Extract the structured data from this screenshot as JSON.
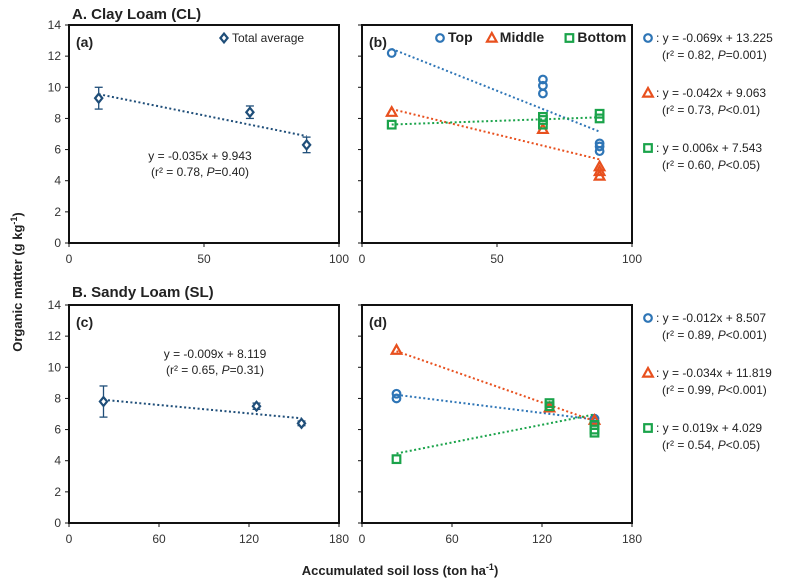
{
  "figure": {
    "ylabel": "Organic matter (g kg",
    "ylabel_sup": "-1",
    "ylabel_close": ")",
    "xlabel": "Accumulated soil loss (ton ha",
    "xlabel_sup": "-1",
    "xlabel_close": ")",
    "section_a": "A. Clay Loam (CL)",
    "section_b": "B. Sandy Loam (SL)"
  },
  "colors": {
    "total": "#1f4e79",
    "top": "#2e75b6",
    "middle": "#e8501e",
    "bottom": "#1aa34a"
  },
  "chart_data": [
    {
      "panel": "(a)",
      "type": "scatter",
      "xlim": [
        0,
        100
      ],
      "xticks": [
        0,
        50,
        100
      ],
      "ylim": [
        0,
        14
      ],
      "yticks": [
        0,
        2,
        4,
        6,
        8,
        10,
        12,
        14
      ],
      "series": [
        {
          "name": "Total average",
          "marker": "diamond",
          "color": "total",
          "points": [
            {
              "x": 11,
              "y": 9.3,
              "err": 0.7
            },
            {
              "x": 67,
              "y": 8.4,
              "err": 0.4
            },
            {
              "x": 88,
              "y": 6.3,
              "err": 0.5
            }
          ],
          "trend": {
            "slope": -0.035,
            "intercept": 9.943,
            "from": 11,
            "to": 88
          }
        }
      ],
      "annotation": {
        "eq": "y = -0.035x + 9.943",
        "stat": "(r² = 0.78, P=0.40)"
      }
    },
    {
      "panel": "(b)",
      "type": "scatter",
      "xlim": [
        0,
        100
      ],
      "xticks": [
        0,
        50,
        100
      ],
      "ylim": [
        0,
        14
      ],
      "yticks": [
        0,
        2,
        4,
        6,
        8,
        10,
        12,
        14
      ],
      "series": [
        {
          "name": "Top",
          "marker": "circle",
          "color": "top",
          "points": [
            {
              "x": 11,
              "y": 12.2
            },
            {
              "x": 67,
              "y": 10.5
            },
            {
              "x": 67,
              "y": 10.1
            },
            {
              "x": 67,
              "y": 9.6
            },
            {
              "x": 88,
              "y": 6.4
            },
            {
              "x": 88,
              "y": 6.2
            },
            {
              "x": 88,
              "y": 5.9
            }
          ],
          "trend": {
            "slope": -0.069,
            "intercept": 13.225,
            "from": 11,
            "to": 88
          },
          "legend_eq": ": y = -0.069x + 13.225",
          "legend_stat": "(r² = 0.82, P=0.001)"
        },
        {
          "name": "Middle",
          "marker": "triangle",
          "color": "middle",
          "points": [
            {
              "x": 11,
              "y": 8.4
            },
            {
              "x": 67,
              "y": 7.3
            },
            {
              "x": 88,
              "y": 4.9
            },
            {
              "x": 88,
              "y": 4.6
            },
            {
              "x": 88,
              "y": 4.3
            }
          ],
          "trend": {
            "slope": -0.042,
            "intercept": 9.063,
            "from": 11,
            "to": 88
          },
          "legend_eq": ": y = -0.042x + 9.063",
          "legend_stat": "(r² = 0.73, P<0.01)"
        },
        {
          "name": "Bottom",
          "marker": "square",
          "color": "bottom",
          "points": [
            {
              "x": 11,
              "y": 7.6
            },
            {
              "x": 67,
              "y": 8.1
            },
            {
              "x": 67,
              "y": 7.9
            },
            {
              "x": 67,
              "y": 7.6
            },
            {
              "x": 88,
              "y": 8.3
            },
            {
              "x": 88,
              "y": 8.0
            }
          ],
          "trend": {
            "slope": 0.006,
            "intercept": 7.543,
            "from": 11,
            "to": 88
          },
          "legend_eq": ": y = 0.006x + 7.543",
          "legend_stat": "(r² = 0.60, P<0.05)"
        }
      ]
    },
    {
      "panel": "(c)",
      "type": "scatter",
      "xlim": [
        0,
        180
      ],
      "xticks": [
        0,
        60,
        120,
        180
      ],
      "ylim": [
        0,
        14
      ],
      "yticks": [
        0,
        2,
        4,
        6,
        8,
        10,
        12,
        14
      ],
      "series": [
        {
          "name": "Total average",
          "marker": "diamond",
          "color": "total",
          "points": [
            {
              "x": 23,
              "y": 7.8,
              "err": 1.0
            },
            {
              "x": 125,
              "y": 7.5,
              "err": 0.2
            },
            {
              "x": 155,
              "y": 6.4,
              "err": 0.15
            }
          ],
          "trend": {
            "slope": -0.009,
            "intercept": 8.119,
            "from": 23,
            "to": 155
          }
        }
      ],
      "annotation": {
        "eq": "y = -0.009x + 8.119",
        "stat": "(r² = 0.65, P=0.31)"
      }
    },
    {
      "panel": "(d)",
      "type": "scatter",
      "xlim": [
        0,
        180
      ],
      "xticks": [
        0,
        60,
        120,
        180
      ],
      "ylim": [
        0,
        14
      ],
      "yticks": [
        0,
        2,
        4,
        6,
        8,
        10,
        12,
        14
      ],
      "series": [
        {
          "name": "Top",
          "marker": "circle",
          "color": "top",
          "points": [
            {
              "x": 23,
              "y": 8.3
            },
            {
              "x": 23,
              "y": 8.0
            },
            {
              "x": 125,
              "y": 7.4
            },
            {
              "x": 155,
              "y": 6.7
            },
            {
              "x": 155,
              "y": 6.5
            }
          ],
          "trend": {
            "slope": -0.012,
            "intercept": 8.507,
            "from": 23,
            "to": 155
          },
          "legend_eq": ": y = -0.012x + 8.507",
          "legend_stat": "(r² = 0.89, P<0.001)"
        },
        {
          "name": "Middle",
          "marker": "triangle",
          "color": "middle",
          "points": [
            {
              "x": 23,
              "y": 11.1
            },
            {
              "x": 125,
              "y": 7.4
            },
            {
              "x": 155,
              "y": 6.6
            }
          ],
          "trend": {
            "slope": -0.034,
            "intercept": 11.819,
            "from": 23,
            "to": 155
          },
          "legend_eq": ": y = -0.034x + 11.819",
          "legend_stat": "(r² = 0.99, P<0.001)"
        },
        {
          "name": "Bottom",
          "marker": "square",
          "color": "bottom",
          "points": [
            {
              "x": 23,
              "y": 4.1
            },
            {
              "x": 125,
              "y": 7.7
            },
            {
              "x": 125,
              "y": 7.5
            },
            {
              "x": 155,
              "y": 6.3
            },
            {
              "x": 155,
              "y": 6.0
            },
            {
              "x": 155,
              "y": 5.8
            }
          ],
          "trend": {
            "slope": 0.019,
            "intercept": 4.029,
            "from": 23,
            "to": 155
          },
          "legend_eq": ": y = 0.019x + 4.029",
          "legend_stat": "(r² = 0.54, P<0.05)"
        }
      ]
    }
  ]
}
